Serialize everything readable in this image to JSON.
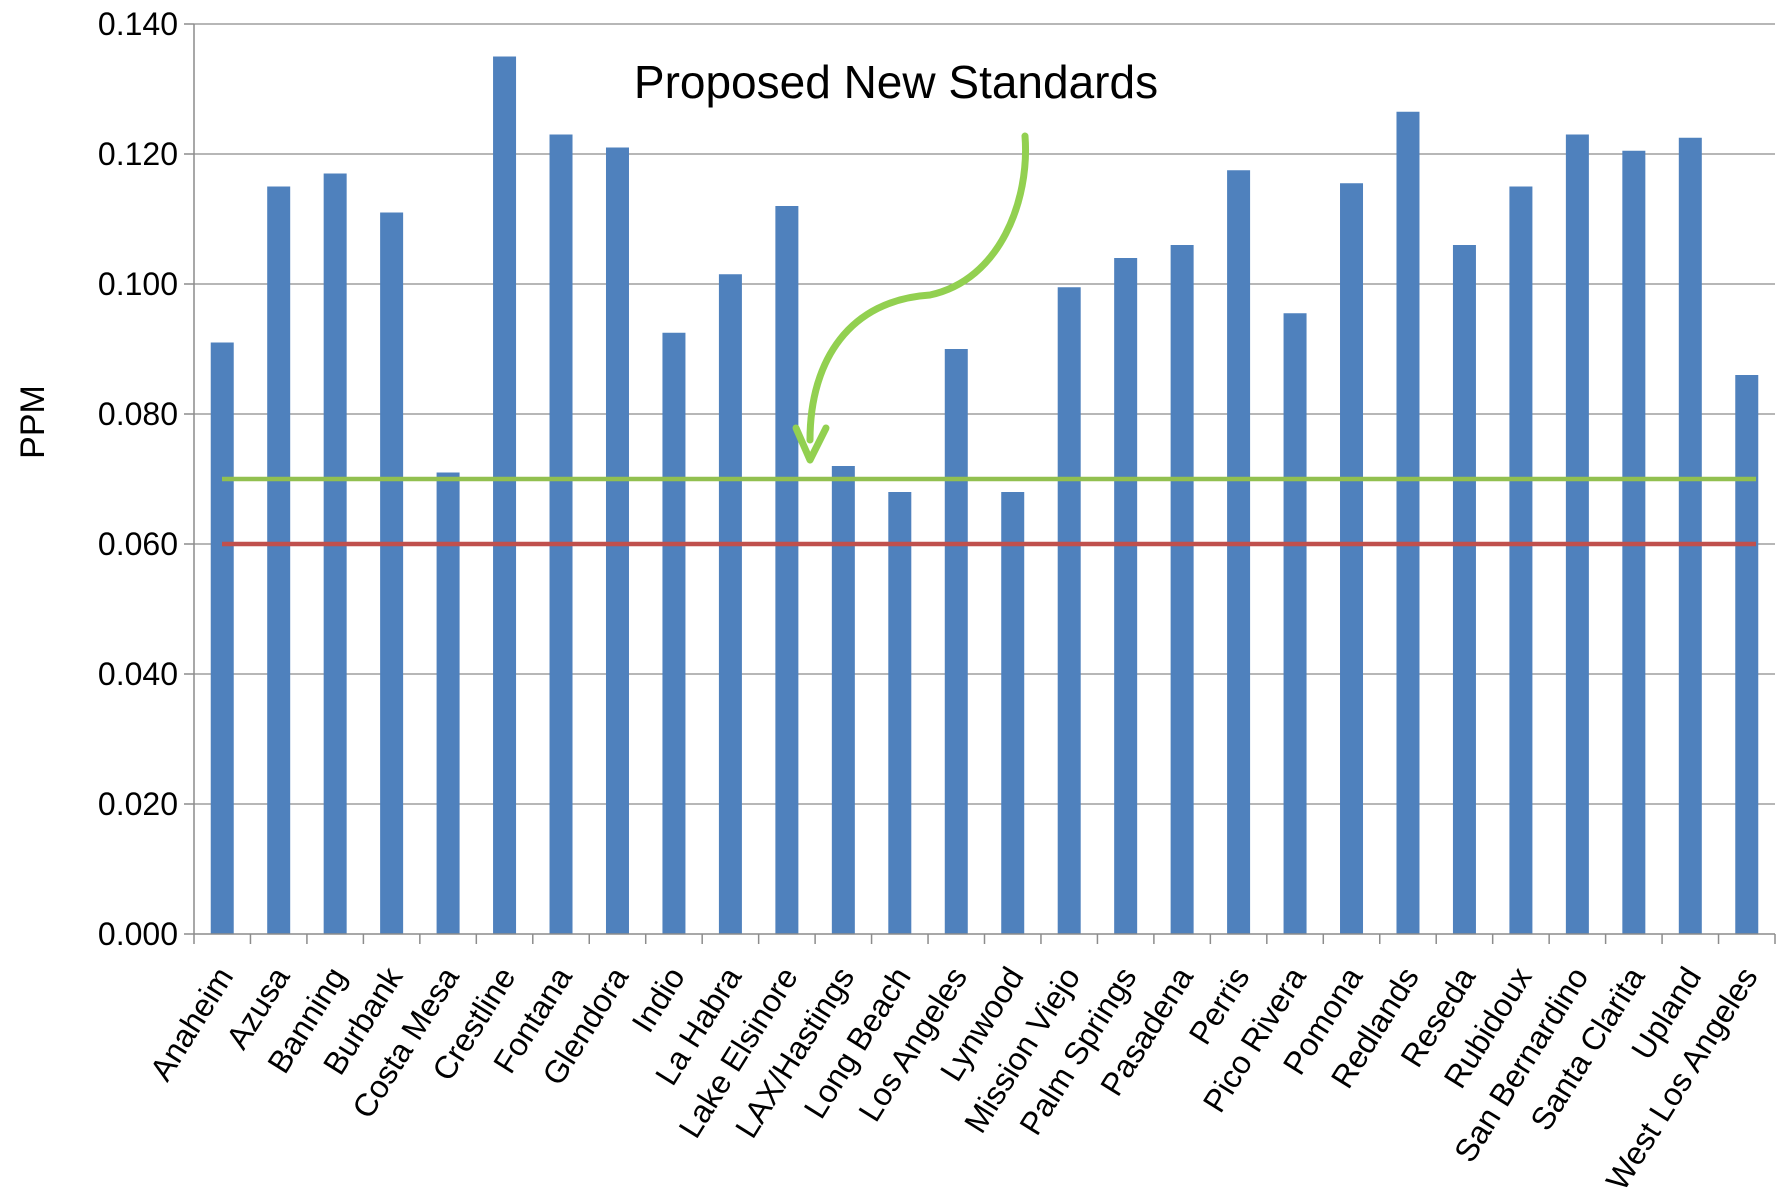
{
  "chart_data": {
    "type": "bar",
    "ylabel": "PPM",
    "ylim": [
      0,
      0.14
    ],
    "yticks": [
      "0.000",
      "0.020",
      "0.040",
      "0.060",
      "0.080",
      "0.100",
      "0.120",
      "0.140"
    ],
    "grid": true,
    "categories": [
      "Anaheim",
      "Azusa",
      "Banning",
      "Burbank",
      "Costa Mesa",
      "Crestline",
      "Fontana",
      "Glendora",
      "Indio",
      "La Habra",
      "Lake Elsinore",
      "LAX/Hastings",
      "Long Beach",
      "Los Angeles",
      "Lynwood",
      "Mission Viejo",
      "Palm Springs",
      "Pasadena",
      "Perris",
      "Pico Rivera",
      "Pomona",
      "Redlands",
      "Reseda",
      "Rubidoux",
      "San Bernardino",
      "Santa Clarita",
      "Upland",
      "West Los Angeles"
    ],
    "series": [
      {
        "color": "#4f81bd",
        "values": [
          0.091,
          0.115,
          0.117,
          0.111,
          0.071,
          0.135,
          0.123,
          0.121,
          0.0925,
          0.1015,
          0.112,
          0.072,
          0.068,
          0.09,
          0.068,
          0.0995,
          0.104,
          0.106,
          0.1175,
          0.0955,
          0.1155,
          0.1265,
          0.106,
          0.115,
          0.123,
          0.1205,
          0.1225,
          0.086
        ]
      }
    ],
    "reference_lines": [
      {
        "value": 0.07,
        "color": "#92c050"
      },
      {
        "value": 0.06,
        "color": "#c0504d"
      }
    ],
    "annotations": [
      {
        "text": "Proposed New Standards",
        "arrow_color": "#92d050"
      }
    ]
  }
}
